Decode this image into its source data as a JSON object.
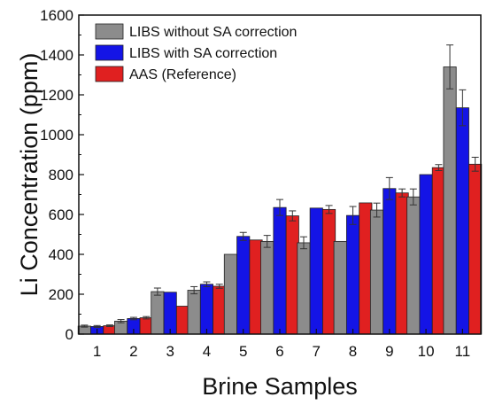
{
  "chart_data": {
    "type": "bar",
    "title": "",
    "xlabel": "Brine Samples",
    "ylabel": "Li Concentration (ppm)",
    "ylim": [
      0,
      1600
    ],
    "yticks": [
      "0",
      "200",
      "400",
      "600",
      "800",
      "1000",
      "1200",
      "1400",
      "1600"
    ],
    "categories": [
      "1",
      "2",
      "3",
      "4",
      "5",
      "6",
      "7",
      "8",
      "9",
      "10",
      "11"
    ],
    "grid": false,
    "legend_position": "top-left",
    "series": [
      {
        "name": "LIBS without SA correction",
        "color": "#8c8c8c",
        "values": [
          40,
          65,
          213,
          220,
          400,
          465,
          458,
          465,
          622,
          688,
          1340
        ],
        "errors": [
          5,
          8,
          18,
          18,
          0,
          30,
          30,
          0,
          35,
          40,
          110
        ]
      },
      {
        "name": "LIBS with SA correction",
        "color": "#1414e6",
        "values": [
          38,
          78,
          210,
          250,
          490,
          635,
          632,
          595,
          730,
          800,
          1135
        ],
        "errors": [
          5,
          6,
          0,
          12,
          20,
          40,
          0,
          45,
          55,
          0,
          90
        ]
      },
      {
        "name": "AAS (Reference)",
        "color": "#e02020",
        "values": [
          42,
          82,
          140,
          240,
          472,
          593,
          625,
          658,
          708,
          835,
          852
        ],
        "errors": [
          4,
          6,
          0,
          10,
          0,
          25,
          20,
          0,
          20,
          15,
          35
        ]
      }
    ]
  }
}
